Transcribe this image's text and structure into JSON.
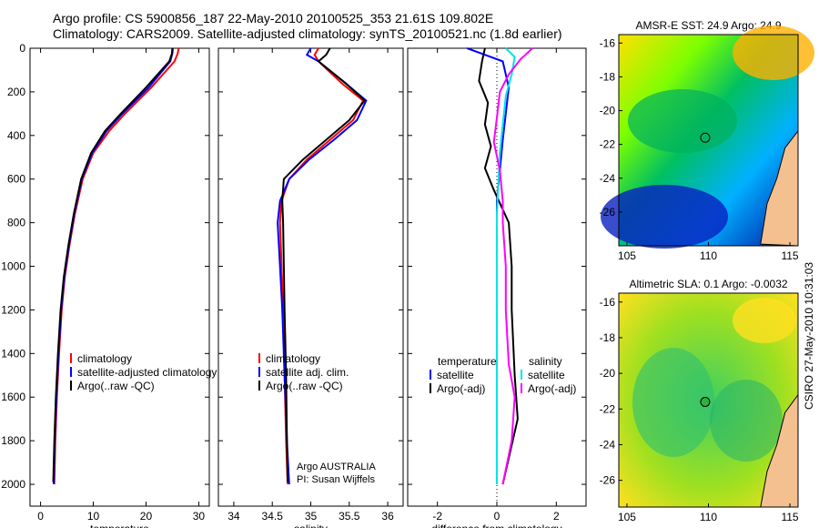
{
  "titles": {
    "line1": "Argo profile: CS 5900856_187 22-May-2010 20100525_353 21.61S 109.802E",
    "line2": "Climatology: CARS2009. Satellite-adjusted climatology: synTS_20100521.nc (1.8d earlier)"
  },
  "footer_stamp": "CSIRO 27-May-2010 10:31:03",
  "colors": {
    "climatology": "#ff0000",
    "satellite": "#0000ff",
    "argo": "#000000",
    "sat_salinity": "#00e5e5",
    "argo_salinity": "#ff00ff"
  },
  "chart_data": [
    {
      "type": "line",
      "xlabel": "temperature",
      "xlim": [
        -2,
        32
      ],
      "xticks": [
        0,
        10,
        20,
        30
      ],
      "ylim": [
        0,
        2100
      ],
      "yticks": [
        0,
        200,
        400,
        600,
        800,
        1000,
        1200,
        1400,
        1600,
        1800,
        2000
      ],
      "y_reversed": true,
      "legend": [
        "climatology",
        "satellite-adjusted climatology",
        "Argo(..raw -QC)"
      ],
      "series": [
        {
          "name": "climatology",
          "color": "#ff0000",
          "x": [
            26.2,
            26.0,
            25.4,
            21,
            16,
            13,
            10,
            8,
            6.5,
            5.5,
            4.6,
            4.0,
            3.5,
            3.1,
            2.8,
            2.6
          ],
          "y": [
            0,
            25,
            60,
            180,
            300,
            380,
            480,
            600,
            760,
            900,
            1050,
            1200,
            1400,
            1600,
            1800,
            2000
          ]
        },
        {
          "name": "satellite-adjusted climatology",
          "color": "#0000ff",
          "x": [
            25.1,
            25.0,
            24.6,
            20.5,
            15.5,
            12.5,
            9.8,
            7.8,
            6.4,
            5.4,
            4.5,
            3.9,
            3.4,
            3.0,
            2.7,
            2.5
          ],
          "y": [
            0,
            25,
            60,
            180,
            300,
            380,
            480,
            600,
            760,
            900,
            1050,
            1200,
            1400,
            1600,
            1800,
            2000
          ]
        },
        {
          "name": "Argo(..raw -QC)",
          "color": "#000000",
          "x": [
            25.0,
            24.9,
            24.4,
            20,
            15.2,
            12.2,
            9.6,
            7.7,
            6.3,
            5.3,
            4.4,
            3.8,
            3.3,
            2.9,
            2.6,
            2.4
          ],
          "y": [
            0,
            25,
            60,
            180,
            300,
            380,
            480,
            600,
            760,
            900,
            1050,
            1200,
            1400,
            1600,
            1800,
            1990
          ]
        }
      ]
    },
    {
      "type": "line",
      "xlabel": "salinity",
      "xlim": [
        33.8,
        36.2
      ],
      "xticks": [
        34,
        34.5,
        35,
        35.5,
        36
      ],
      "ylim": [
        0,
        2100
      ],
      "y_reversed": true,
      "legend": [
        "climatology",
        "satellite adj. clim.",
        "Argo(..raw -QC)"
      ],
      "annotations": [
        "Argo AUSTRALIA",
        "PI: Susan Wijffels"
      ],
      "series": [
        {
          "name": "climatology",
          "color": "#ff0000",
          "x": [
            35.1,
            35.05,
            35.1,
            35.4,
            35.68,
            35.55,
            35.25,
            34.95,
            34.72,
            34.62,
            34.6,
            34.62,
            34.64,
            34.66,
            34.68,
            34.7
          ],
          "y": [
            0,
            30,
            60,
            160,
            240,
            330,
            420,
            510,
            600,
            700,
            800,
            1000,
            1200,
            1500,
            1800,
            2000
          ]
        },
        {
          "name": "satellite adj. clim.",
          "color": "#0000ff",
          "x": [
            35.0,
            34.95,
            35.1,
            35.45,
            35.72,
            35.6,
            35.3,
            34.98,
            34.72,
            34.6,
            34.57,
            34.6,
            34.63,
            34.66,
            34.69,
            34.72
          ],
          "y": [
            0,
            30,
            60,
            160,
            240,
            330,
            420,
            510,
            600,
            700,
            800,
            1000,
            1200,
            1500,
            1800,
            2000
          ]
        },
        {
          "name": "Argo(..raw -QC)",
          "color": "#000000",
          "x": [
            35.25,
            35.2,
            35.1,
            35.45,
            35.7,
            35.5,
            35.2,
            34.9,
            34.65,
            34.63,
            34.64,
            34.65,
            34.66,
            34.68,
            34.69,
            34.7
          ],
          "y": [
            0,
            30,
            60,
            160,
            240,
            330,
            420,
            510,
            600,
            700,
            800,
            1000,
            1200,
            1500,
            1800,
            1990
          ]
        }
      ]
    },
    {
      "type": "line",
      "xlabel": "difference from climatology",
      "xlim": [
        -3,
        3
      ],
      "xticks": [
        -2,
        0,
        2
      ],
      "ylim": [
        0,
        2100
      ],
      "y_reversed": true,
      "legend_left": {
        "title": "temperature",
        "items": [
          "satellite",
          "Argo(-adj)"
        ]
      },
      "legend_right": {
        "title": "salinity",
        "items": [
          "satellite",
          "Argo(-adj)"
        ]
      },
      "series": [
        {
          "name": "temperature satellite",
          "color": "#0000ff",
          "x": [
            -1.0,
            -0.6,
            0.2,
            0.4,
            0.3,
            0.2,
            0.1,
            0.0,
            0.0,
            0.0,
            0.0,
            0.0,
            0.0,
            0.0
          ],
          "y": [
            0,
            20,
            60,
            180,
            300,
            420,
            560,
            700,
            900,
            1100,
            1300,
            1500,
            1800,
            2000
          ]
        },
        {
          "name": "temperature Argo(-adj)",
          "color": "#000000",
          "x": [
            -0.4,
            -0.5,
            -0.6,
            -0.3,
            -0.4,
            -0.2,
            -0.4,
            -0.1,
            0.4,
            0.5,
            0.5,
            0.6,
            0.7,
            0.2
          ],
          "y": [
            0,
            60,
            150,
            250,
            350,
            450,
            550,
            650,
            800,
            1000,
            1200,
            1500,
            1700,
            2000
          ]
        },
        {
          "name": "salinity satellite",
          "color": "#00e5e5",
          "x": [
            0.3,
            0.6,
            0.5,
            0.3,
            0.2,
            0.1,
            0.05,
            0.0,
            0.0,
            0.0,
            0.0,
            0.0,
            0.0,
            0.0
          ],
          "y": [
            0,
            40,
            120,
            220,
            350,
            480,
            620,
            760,
            900,
            1100,
            1300,
            1500,
            1800,
            2000
          ]
        },
        {
          "name": "salinity Argo(-adj)",
          "color": "#ff00ff",
          "x": [
            1.2,
            0.8,
            0.4,
            0.1,
            0.0,
            -0.1,
            0.1,
            0.2,
            0.2,
            0.3,
            0.3,
            0.4,
            0.6,
            0.5,
            0.2
          ],
          "y": [
            0,
            50,
            120,
            200,
            320,
            430,
            560,
            700,
            800,
            1000,
            1200,
            1450,
            1600,
            1800,
            2000
          ]
        }
      ]
    },
    {
      "type": "heatmap",
      "title": "AMSR-E SST: 24.9 Argo: 24.9",
      "xlim": [
        104.5,
        115.5
      ],
      "ylim": [
        -28,
        -15.5
      ],
      "xticks": [
        105,
        110,
        115
      ],
      "yticks": [
        -16,
        -18,
        -20,
        -22,
        -24,
        -26
      ],
      "marker": {
        "lon": 109.8,
        "lat": -21.6
      }
    },
    {
      "type": "heatmap",
      "title": "Altimetric SLA: 0.1 Argo: -0.0032",
      "xlim": [
        104.5,
        115.5
      ],
      "ylim": [
        -27.5,
        -15.5
      ],
      "xticks": [
        105,
        110,
        115
      ],
      "yticks": [
        -16,
        -18,
        -20,
        -22,
        -24,
        -26
      ],
      "marker": {
        "lon": 109.8,
        "lat": -21.6
      }
    }
  ]
}
